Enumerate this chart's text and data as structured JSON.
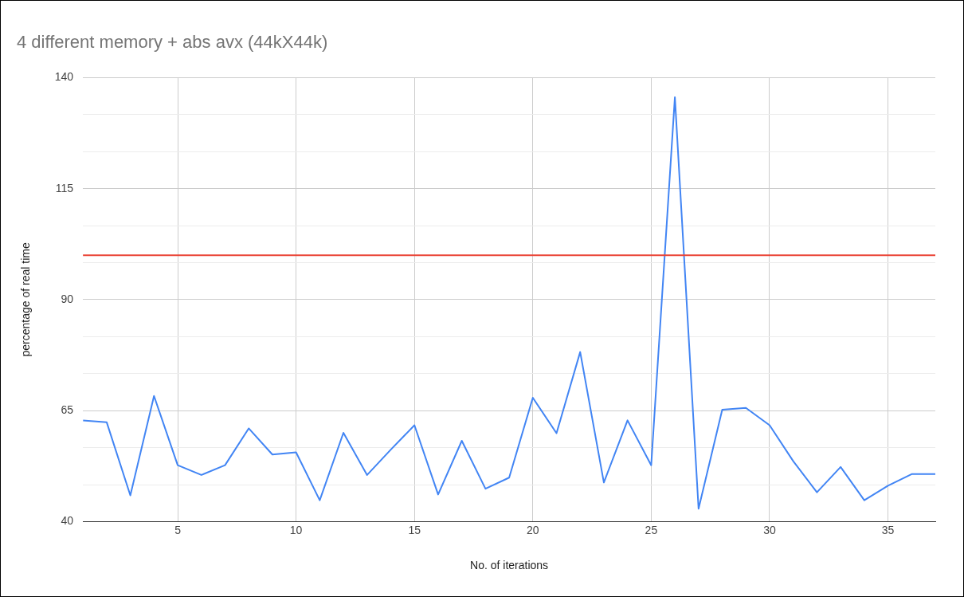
{
  "chart_data": {
    "type": "line",
    "title": "4 different memory + abs avx (44kX44k)",
    "xlabel": "No. of iterations",
    "ylabel": "percentage of real time",
    "x": [
      1,
      2,
      3,
      4,
      5,
      6,
      7,
      8,
      9,
      10,
      11,
      12,
      13,
      14,
      15,
      16,
      17,
      18,
      19,
      20,
      21,
      22,
      23,
      24,
      25,
      26,
      27,
      28,
      29,
      30,
      31,
      32,
      33,
      34,
      35,
      36,
      37
    ],
    "series": [
      {
        "color": "#4285f4",
        "values": [
          62.8,
          62.4,
          45.9,
          68.3,
          52.7,
          50.5,
          52.7,
          61.0,
          55.1,
          55.6,
          44.8,
          60.0,
          50.5,
          56.2,
          61.7,
          46.1,
          58.2,
          47.4,
          49.9,
          67.9,
          59.9,
          78.2,
          48.8,
          62.8,
          52.7,
          135.6,
          42.9,
          65.2,
          65.6,
          61.7,
          53.6,
          46.6,
          52.3,
          44.8,
          48.1,
          50.7,
          50.7
        ]
      }
    ],
    "xlim": [
      1,
      37
    ],
    "xticks": [
      5,
      10,
      15,
      20,
      25,
      30,
      35
    ],
    "ylim": [
      40,
      140
    ],
    "yticks": [
      40,
      {
        "value": 48.33,
        "label": null
      },
      {
        "value": 56.67,
        "label": null
      },
      65,
      {
        "value": 73.33,
        "label": null
      },
      {
        "value": 81.67,
        "label": null
      },
      90,
      {
        "value": 98.33,
        "label": null
      },
      {
        "value": 106.67,
        "label": null
      },
      115,
      {
        "value": 123.33,
        "label": null
      },
      {
        "value": 131.67,
        "label": null
      },
      140
    ],
    "ref_lines": [
      {
        "axis": "y",
        "value": 100,
        "color": "#ea4335"
      }
    ],
    "grid": true,
    "legend": false,
    "marker": "none",
    "line_style": "solid"
  }
}
